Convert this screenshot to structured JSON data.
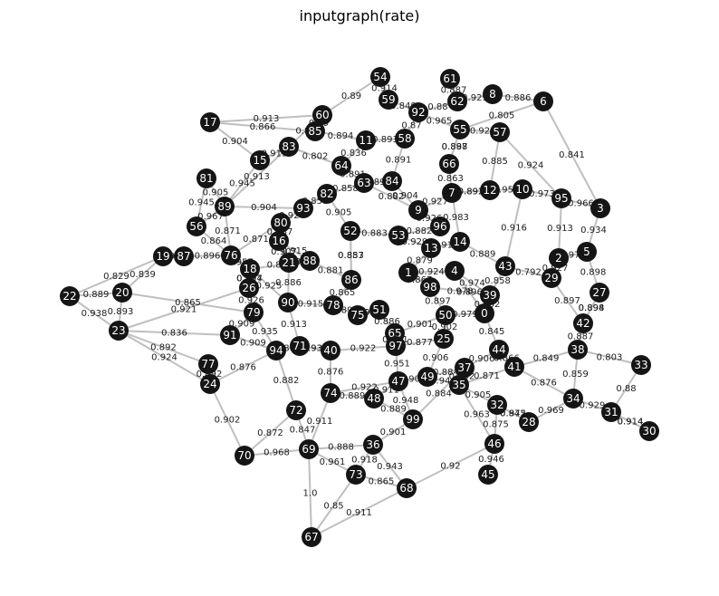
{
  "title": "inputgraph(rate)",
  "colors": {
    "node": "#151515",
    "node_label": "#ffffff",
    "edge": "#bfbfbf",
    "edge_label": "#202020"
  },
  "nodes": [
    "0",
    "1",
    "2",
    "3",
    "4",
    "5",
    "6",
    "7",
    "8",
    "9",
    "10",
    "11",
    "12",
    "13",
    "14",
    "15",
    "16",
    "17",
    "18",
    "19",
    "20",
    "21",
    "22",
    "23",
    "24",
    "25",
    "26",
    "27",
    "28",
    "29",
    "30",
    "31",
    "32",
    "33",
    "34",
    "35",
    "36",
    "37",
    "38",
    "39",
    "40",
    "41",
    "42",
    "43",
    "44",
    "45",
    "46",
    "47",
    "48",
    "49",
    "50",
    "51",
    "52",
    "53",
    "54",
    "55",
    "56",
    "57",
    "58",
    "59",
    "60",
    "61",
    "62",
    "63",
    "64",
    "65",
    "66",
    "67",
    "68",
    "69",
    "70",
    "71",
    "72",
    "73",
    "74",
    "75",
    "76",
    "77",
    "78",
    "79",
    "80",
    "81",
    "82",
    "83",
    "84",
    "85",
    "86",
    "87",
    "88",
    "89",
    "90",
    "91",
    "92",
    "93",
    "94",
    "95",
    "96",
    "97",
    "98",
    "99"
  ],
  "edges": [
    [
      "67",
      "69",
      "1.0"
    ],
    [
      "67",
      "68",
      "0.911"
    ],
    [
      "67",
      "73",
      "0.85"
    ],
    [
      "69",
      "70",
      "0.968"
    ],
    [
      "69",
      "73",
      "0.961"
    ],
    [
      "69",
      "36",
      "0.888"
    ],
    [
      "69",
      "74",
      "0.911"
    ],
    [
      "69",
      "72",
      "0.847"
    ],
    [
      "70",
      "24",
      "0.902"
    ],
    [
      "70",
      "72",
      "0.872"
    ],
    [
      "73",
      "36",
      "0.918"
    ],
    [
      "73",
      "68",
      "0.865"
    ],
    [
      "68",
      "46",
      "0.92"
    ],
    [
      "68",
      "36",
      "0.943"
    ],
    [
      "45",
      "46",
      "0.946"
    ],
    [
      "46",
      "32",
      "0.875"
    ],
    [
      "46",
      "35",
      "0.963"
    ],
    [
      "22",
      "20",
      "0.889"
    ],
    [
      "22",
      "23",
      "0.938"
    ],
    [
      "22",
      "19",
      "0.829"
    ],
    [
      "20",
      "23",
      "0.893"
    ],
    [
      "20",
      "19",
      "0.839"
    ],
    [
      "20",
      "79",
      "0.865"
    ],
    [
      "23",
      "24",
      "0.924"
    ],
    [
      "23",
      "77",
      "0.892"
    ],
    [
      "23",
      "26",
      "0.921"
    ],
    [
      "23",
      "91",
      "0.836"
    ],
    [
      "19",
      "87",
      "0.939"
    ],
    [
      "87",
      "76",
      "0.896"
    ],
    [
      "26",
      "18",
      "0.927"
    ],
    [
      "17",
      "60",
      "0.913"
    ],
    [
      "17",
      "15",
      "0.904"
    ],
    [
      "17",
      "85",
      "0.866"
    ],
    [
      "81",
      "89",
      "0.905"
    ],
    [
      "81",
      "56",
      "0.945"
    ],
    [
      "15",
      "83",
      "0.913"
    ],
    [
      "15",
      "89",
      "0.945"
    ],
    [
      "54",
      "59",
      "0.914"
    ],
    [
      "54",
      "60",
      "0.89"
    ],
    [
      "59",
      "92",
      "0.849"
    ],
    [
      "61",
      "62",
      "0.887"
    ],
    [
      "8",
      "6",
      "0.886"
    ],
    [
      "8",
      "62",
      "0.929"
    ],
    [
      "6",
      "3",
      "0.841"
    ],
    [
      "6",
      "55",
      "0.805"
    ],
    [
      "95",
      "3",
      "0.966"
    ],
    [
      "95",
      "2",
      "0.913"
    ],
    [
      "57",
      "95",
      "0.924"
    ],
    [
      "55",
      "57",
      "0.92"
    ],
    [
      "5",
      "27",
      "0.898"
    ],
    [
      "27",
      "42",
      "0.894"
    ],
    [
      "33",
      "31",
      "0.88"
    ],
    [
      "31",
      "30",
      "0.914"
    ],
    [
      "34",
      "31",
      "0.929"
    ],
    [
      "28",
      "34",
      "0.969"
    ],
    [
      "32",
      "28",
      "0.942"
    ],
    [
      "33",
      "38",
      "0.803"
    ],
    [
      "38",
      "34",
      "0.859"
    ],
    [
      "41",
      "34",
      "0.876"
    ],
    [
      "41",
      "35",
      "0.871"
    ],
    [
      "37",
      "44",
      "0.906"
    ],
    [
      "99",
      "47",
      "0.948"
    ],
    [
      "99",
      "48",
      "0.889"
    ],
    [
      "99",
      "37",
      "0.884"
    ],
    [
      "49",
      "35",
      "0.944"
    ],
    [
      "74",
      "48",
      "0.889"
    ],
    [
      "72",
      "94",
      "0.882"
    ],
    [
      "24",
      "94",
      "0.876"
    ],
    [
      "91",
      "94",
      "0.909"
    ],
    [
      "71",
      "40",
      "0.933"
    ],
    [
      "65",
      "97",
      "0.901"
    ],
    [
      "51",
      "75",
      "0.948"
    ],
    [
      "50",
      "0",
      "0.979"
    ],
    [
      "39",
      "43",
      "0.858"
    ],
    [
      "43",
      "29",
      "0.792"
    ],
    [
      "29",
      "42",
      "0.897"
    ],
    [
      "4",
      "39",
      "0.974"
    ],
    [
      "1",
      "98",
      "0.867"
    ],
    [
      "13",
      "14",
      "0.917"
    ],
    [
      "53",
      "96",
      "0.882"
    ],
    [
      "9",
      "7",
      "0.927"
    ],
    [
      "84",
      "63",
      "0.891"
    ],
    [
      "64",
      "11",
      "0.836"
    ],
    [
      "58",
      "92",
      "0.87"
    ],
    [
      "66",
      "55",
      "0.898"
    ],
    [
      "12",
      "10",
      "0.954"
    ],
    [
      "12",
      "7",
      "0.891"
    ],
    [
      "82",
      "93",
      "0.858"
    ],
    [
      "80",
      "16",
      "0.787"
    ],
    [
      "21",
      "88",
      "0.843"
    ],
    [
      "86",
      "52",
      "0.883"
    ],
    [
      "78",
      "90",
      "0.915"
    ],
    [
      "25",
      "50",
      "0.902"
    ],
    [
      "88",
      "18",
      "0.868"
    ],
    [
      "89",
      "76",
      "0.871"
    ],
    [
      "76",
      "18",
      "0.957"
    ],
    [
      "18",
      "90",
      "0.925"
    ],
    [
      "90",
      "71",
      "0.913"
    ],
    [
      "71",
      "40",
      "0.933"
    ],
    [
      "40",
      "74",
      "0.876"
    ],
    [
      "74",
      "47",
      "0.922"
    ],
    [
      "47",
      "49",
      "0.909"
    ],
    [
      "49",
      "37",
      "0.884"
    ],
    [
      "37",
      "35",
      "0.942"
    ],
    [
      "35",
      "32",
      "0.905"
    ],
    [
      "83",
      "64",
      "0.802"
    ],
    [
      "64",
      "63",
      "0.891"
    ],
    [
      "63",
      "82",
      "0.858"
    ],
    [
      "82",
      "52",
      "0.905"
    ],
    [
      "52",
      "53",
      "0.883"
    ],
    [
      "53",
      "13",
      "0.929"
    ],
    [
      "13",
      "1",
      "0.879"
    ],
    [
      "1",
      "4",
      "0.924"
    ],
    [
      "4",
      "0",
      "0.896"
    ],
    [
      "0",
      "44",
      "0.845"
    ],
    [
      "44",
      "41",
      "0.866"
    ],
    [
      "41",
      "38",
      "0.849"
    ],
    [
      "38",
      "42",
      "0.887"
    ],
    [
      "42",
      "27",
      "0.898"
    ],
    [
      "2",
      "29",
      "0.927"
    ],
    [
      "2",
      "5",
      "0.977"
    ],
    [
      "10",
      "95",
      "0.973"
    ],
    [
      "10",
      "43",
      "0.916"
    ],
    [
      "14",
      "43",
      "0.889"
    ],
    [
      "14",
      "7",
      "0.983"
    ],
    [
      "96",
      "9",
      "0.926"
    ],
    [
      "9",
      "84",
      "0.904"
    ],
    [
      "84",
      "58",
      "0.891"
    ],
    [
      "58",
      "11",
      "0.893"
    ],
    [
      "11",
      "85",
      "0.894"
    ],
    [
      "85",
      "60",
      "0.89"
    ],
    [
      "60",
      "83",
      "0.89"
    ],
    [
      "83",
      "89",
      "0.913"
    ],
    [
      "89",
      "93",
      "0.904"
    ],
    [
      "93",
      "80",
      "0.924"
    ],
    [
      "80",
      "76",
      "0.871"
    ],
    [
      "16",
      "21",
      "0.907"
    ],
    [
      "21",
      "90",
      "0.886"
    ],
    [
      "88",
      "86",
      "0.881"
    ],
    [
      "86",
      "78",
      "0.865"
    ],
    [
      "78",
      "75",
      "0.895"
    ],
    [
      "75",
      "51",
      "0.912"
    ],
    [
      "51",
      "65",
      "0.886"
    ],
    [
      "65",
      "50",
      "0.901"
    ],
    [
      "50",
      "98",
      "0.897"
    ],
    [
      "98",
      "39",
      "0.978"
    ],
    [
      "39",
      "0",
      "0.902"
    ],
    [
      "97",
      "25",
      "0.877"
    ],
    [
      "25",
      "49",
      "0.906"
    ],
    [
      "40",
      "97",
      "0.922"
    ],
    [
      "97",
      "47",
      "0.951"
    ],
    [
      "79",
      "91",
      "0.909"
    ],
    [
      "79",
      "94",
      "0.935"
    ],
    [
      "94",
      "71",
      "0.862"
    ],
    [
      "26",
      "79",
      "0.926"
    ],
    [
      "18",
      "26",
      "0.894"
    ],
    [
      "56",
      "76",
      "0.864"
    ],
    [
      "56",
      "89",
      "0.967"
    ],
    [
      "16",
      "88",
      "0.915"
    ],
    [
      "92",
      "55",
      "0.965"
    ],
    [
      "62",
      "92",
      "0.88"
    ],
    [
      "55",
      "66",
      "0.887"
    ],
    [
      "66",
      "7",
      "0.863"
    ],
    [
      "7",
      "12",
      "0.892"
    ],
    [
      "57",
      "12",
      "0.885"
    ],
    [
      "63",
      "9",
      "0.882"
    ],
    [
      "52",
      "86",
      "0.857"
    ],
    [
      "77",
      "24",
      "0.892"
    ],
    [
      "36",
      "99",
      "0.901"
    ],
    [
      "48",
      "47",
      "0.911"
    ],
    [
      "28",
      "32",
      "0.875"
    ],
    [
      "30",
      "31",
      "0.914"
    ],
    [
      "3",
      "5",
      "0.934"
    ]
  ]
}
